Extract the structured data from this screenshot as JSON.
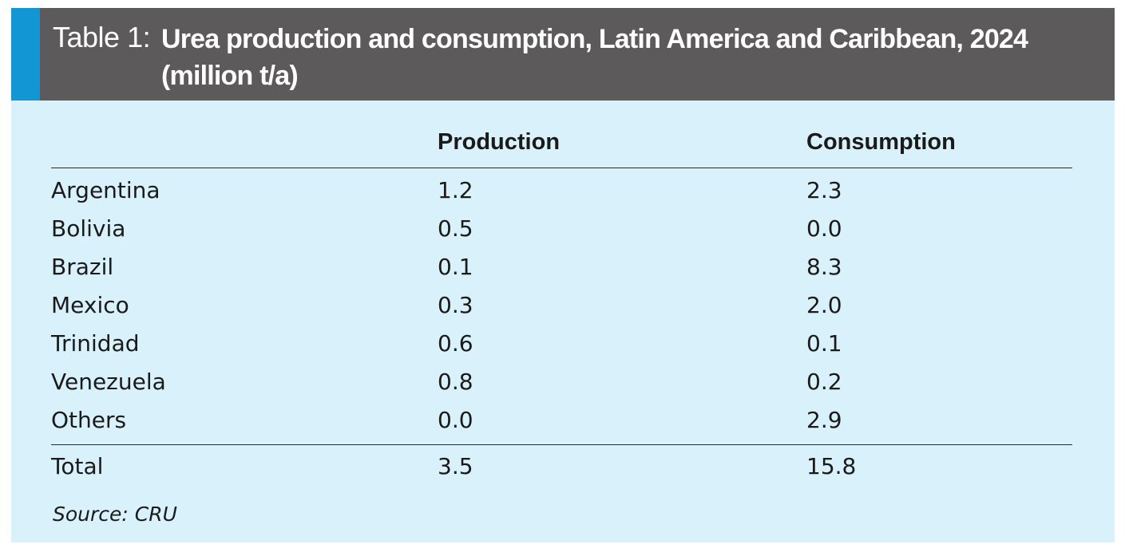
{
  "title": {
    "prefix": "Table 1:",
    "text": "Urea production and consumption, Latin America and Caribbean, 2024 (million t/a)"
  },
  "columns": {
    "country": "",
    "production": "Production",
    "consumption": "Consumption"
  },
  "rows": [
    {
      "country": "Argentina",
      "production": "1.2",
      "consumption": "2.3"
    },
    {
      "country": "Bolivia",
      "production": "0.5",
      "consumption": "0.0"
    },
    {
      "country": "Brazil",
      "production": "0.1",
      "consumption": "8.3"
    },
    {
      "country": "Mexico",
      "production": "0.3",
      "consumption": "2.0"
    },
    {
      "country": "Trinidad",
      "production": "0.6",
      "consumption": "0.1"
    },
    {
      "country": "Venezuela",
      "production": "0.8",
      "consumption": "0.2"
    },
    {
      "country": "Others",
      "production": "0.0",
      "consumption": "2.9"
    }
  ],
  "total": {
    "country": "Total",
    "production": "3.5",
    "consumption": "15.8"
  },
  "source": "Source: CRU",
  "colors": {
    "title_background": "#5c5a5b",
    "title_accent": "#1296d4",
    "table_background": "#d9f1fa",
    "text": "#1a1a1a"
  }
}
